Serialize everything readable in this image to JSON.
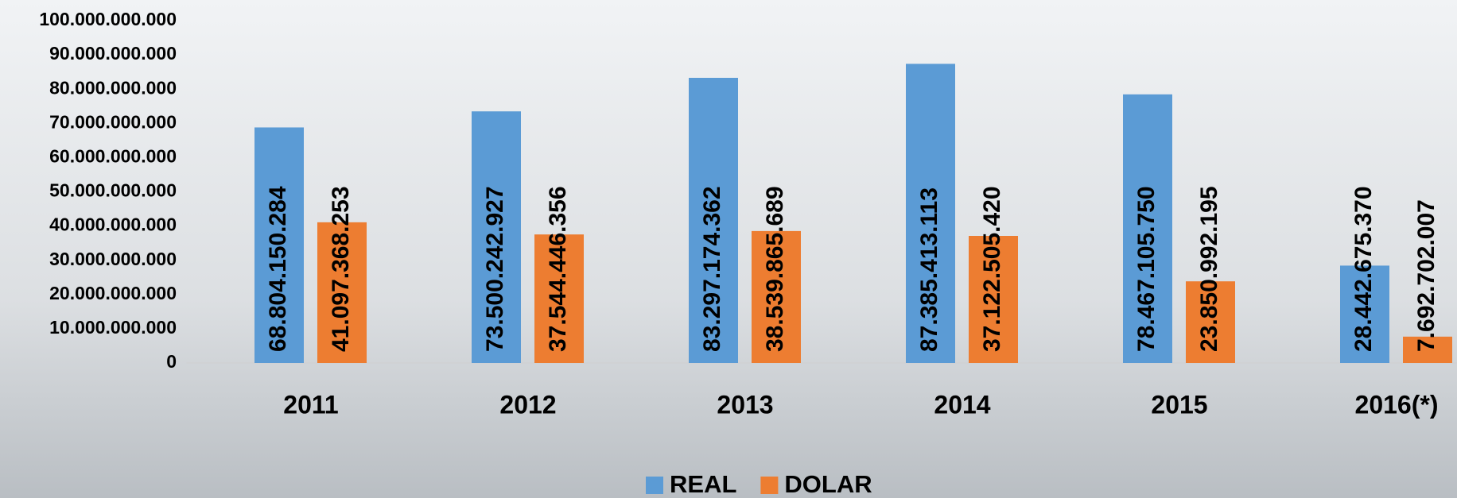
{
  "chart_data": {
    "type": "bar",
    "categories": [
      "2011",
      "2012",
      "2013",
      "2014",
      "2015",
      "2016(*)"
    ],
    "series": [
      {
        "name": "REAL",
        "color": "#5b9bd5",
        "values": [
          68804150284,
          73500242927,
          83297174362,
          87385413113,
          78467105750,
          28442675370
        ],
        "value_labels": [
          "68.804.150.284",
          "73.500.242.927",
          "83.297.174.362",
          "87.385.413.113",
          "78.467.105.750",
          "28.442.675.370"
        ]
      },
      {
        "name": "DOLAR",
        "color": "#ed7d31",
        "values": [
          41097368253,
          37544446356,
          38539865689,
          37122505420,
          23850992195,
          7692702007
        ],
        "value_labels": [
          "41.097.368.253",
          "37.544.446.356",
          "38.539.865.689",
          "37.122.505.420",
          "23.850.992.195",
          "7.692.702.007"
        ]
      }
    ],
    "ylim": [
      0,
      100000000000
    ],
    "yticks": [
      0,
      {
        "value": 10000000000,
        "label": "10.000.000.000"
      },
      {
        "value": 20000000000,
        "label": "20.000.000.000"
      },
      {
        "value": 30000000000,
        "label": "30.000.000.000"
      },
      {
        "value": 40000000000,
        "label": "40.000.000.000"
      },
      {
        "value": 50000000000,
        "label": "50.000.000.000"
      },
      {
        "value": 60000000000,
        "label": "60.000.000.000"
      },
      {
        "value": 70000000000,
        "label": "70.000.000.000"
      },
      {
        "value": 80000000000,
        "label": "80.000.000.000"
      },
      {
        "value": 90000000000,
        "label": "90.000.000.000"
      },
      {
        "value": 100000000000,
        "label": "100.000.000.000"
      }
    ],
    "legend": "bottom"
  }
}
